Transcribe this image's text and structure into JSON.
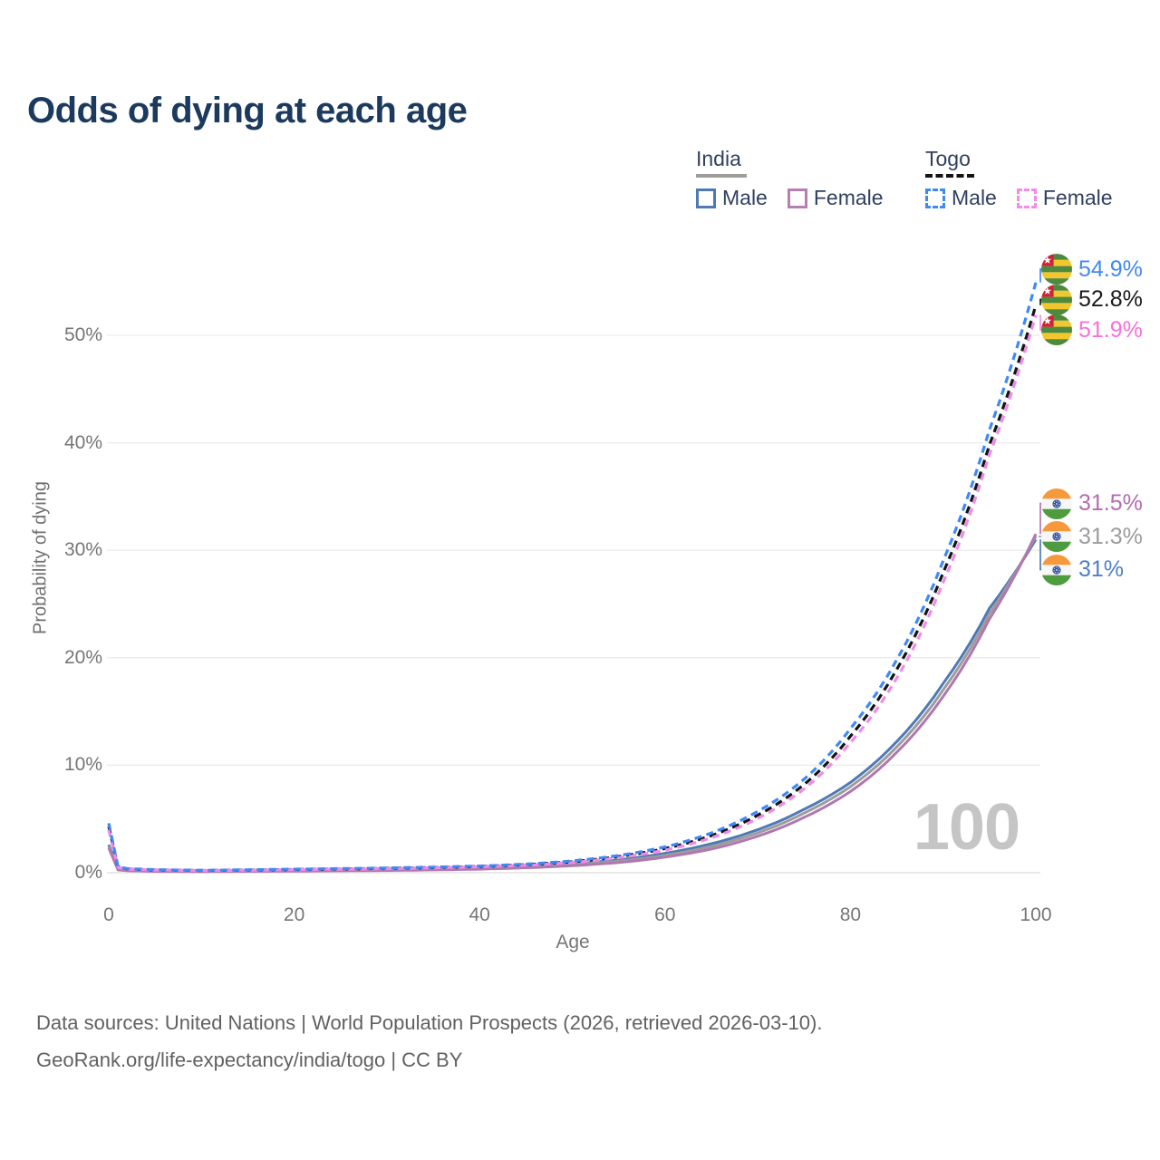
{
  "title": "Odds of dying at each age",
  "watermark": "100",
  "legend": {
    "groups": [
      {
        "name": "India",
        "underline": "solid",
        "underline_color": "#9e9e9e",
        "items": [
          {
            "label": "Male",
            "color": "#4e79b5",
            "dash": false
          },
          {
            "label": "Female",
            "color": "#b57fb1",
            "dash": false
          }
        ]
      },
      {
        "name": "Togo",
        "underline": "dashed",
        "underline_color": "#141414",
        "items": [
          {
            "label": "Male",
            "color": "#4089f5",
            "dash": true
          },
          {
            "label": "Female",
            "color": "#f78ae9",
            "dash": true
          }
        ]
      }
    ]
  },
  "footer": {
    "line1": "Data sources: United Nations | World Population Prospects (2026, retrieved 2026-03-10).",
    "line2": "GeoRank.org/life-expectancy/india/togo | CC BY"
  },
  "chart_data": {
    "type": "line",
    "title": "Odds of dying at each age",
    "xlabel": "Age",
    "ylabel": "Probability of dying",
    "xlim": [
      0,
      100
    ],
    "ylim_pct": [
      0,
      57
    ],
    "grid": true,
    "legend_position": "top-right",
    "x_ticks": [
      0,
      20,
      40,
      60,
      80,
      100
    ],
    "y_ticks": [
      {
        "v": 0,
        "label": "0%"
      },
      {
        "v": 10,
        "label": "10%"
      },
      {
        "v": 20,
        "label": "20%"
      },
      {
        "v": 30,
        "label": "30%"
      },
      {
        "v": 40,
        "label": "40%"
      },
      {
        "v": 50,
        "label": "50%"
      }
    ],
    "hovered_age": "100",
    "x": [
      0,
      1,
      2,
      5,
      10,
      15,
      20,
      25,
      30,
      35,
      40,
      45,
      50,
      55,
      60,
      65,
      70,
      75,
      80,
      85,
      90,
      95,
      100
    ],
    "series": [
      {
        "name": "Togo Male",
        "country": "Togo",
        "sex": "male",
        "color": "#4089f5",
        "label_color": "#4189f2",
        "dash": true,
        "end_label": "54.9%",
        "end_value": 54.9,
        "row": 0,
        "values": [
          4.6,
          0.55,
          0.38,
          0.28,
          0.22,
          0.27,
          0.33,
          0.38,
          0.44,
          0.52,
          0.62,
          0.8,
          1.1,
          1.6,
          2.4,
          3.7,
          5.7,
          8.7,
          13.4,
          19.8,
          29.0,
          41.2,
          54.9
        ]
      },
      {
        "name": "Togo Both sexes",
        "country": "Togo",
        "sex": "both",
        "color": "#141414",
        "label_color": "#1a1a1a",
        "dash": true,
        "end_label": "52.8%",
        "end_value": 52.8,
        "row": 1,
        "values": [
          4.3,
          0.52,
          0.36,
          0.26,
          0.21,
          0.25,
          0.3,
          0.35,
          0.41,
          0.48,
          0.58,
          0.75,
          1.02,
          1.5,
          2.25,
          3.45,
          5.35,
          8.2,
          12.7,
          18.9,
          27.9,
          39.8,
          52.8
        ]
      },
      {
        "name": "Togo Female",
        "country": "Togo",
        "sex": "female",
        "color": "#f08ae9",
        "label_color": "#fb6fdb",
        "dash": true,
        "end_label": "51.9%",
        "end_value": 51.9,
        "row": 2,
        "values": [
          4.0,
          0.49,
          0.34,
          0.25,
          0.2,
          0.23,
          0.28,
          0.33,
          0.38,
          0.45,
          0.55,
          0.7,
          0.95,
          1.4,
          2.1,
          3.25,
          5.05,
          7.8,
          12.1,
          18.1,
          27.0,
          38.9,
          51.9
        ]
      },
      {
        "name": "India Female",
        "country": "India",
        "sex": "female",
        "color": "#b177af",
        "label_color": "#b66bb0",
        "dash": false,
        "end_label": "31.5%",
        "end_value": 31.5,
        "row": 0,
        "values": [
          2.3,
          0.26,
          0.19,
          0.13,
          0.11,
          0.13,
          0.15,
          0.18,
          0.21,
          0.26,
          0.33,
          0.46,
          0.65,
          0.95,
          1.45,
          2.2,
          3.4,
          5.15,
          7.55,
          11.2,
          16.4,
          23.6,
          31.5
        ]
      },
      {
        "name": "India Both sexes",
        "country": "India",
        "sex": "both",
        "color": "#9c9c9c",
        "label_color": "#9c9c9c",
        "dash": false,
        "end_label": "31.3%",
        "end_value": 31.3,
        "row": 1,
        "values": [
          2.45,
          0.28,
          0.2,
          0.14,
          0.12,
          0.14,
          0.17,
          0.2,
          0.24,
          0.3,
          0.38,
          0.52,
          0.74,
          1.08,
          1.62,
          2.45,
          3.7,
          5.55,
          8.0,
          11.7,
          17.0,
          24.1,
          31.3
        ]
      },
      {
        "name": "India Male",
        "country": "India",
        "sex": "male",
        "color": "#4e79b5",
        "label_color": "#4f7ecb",
        "dash": false,
        "end_label": "31%",
        "end_value": 31.0,
        "row": 2,
        "values": [
          2.6,
          0.3,
          0.22,
          0.15,
          0.13,
          0.16,
          0.2,
          0.23,
          0.27,
          0.33,
          0.42,
          0.58,
          0.82,
          1.2,
          1.8,
          2.7,
          4.0,
          5.9,
          8.4,
          12.2,
          17.6,
          24.6,
          31.0
        ]
      }
    ]
  }
}
